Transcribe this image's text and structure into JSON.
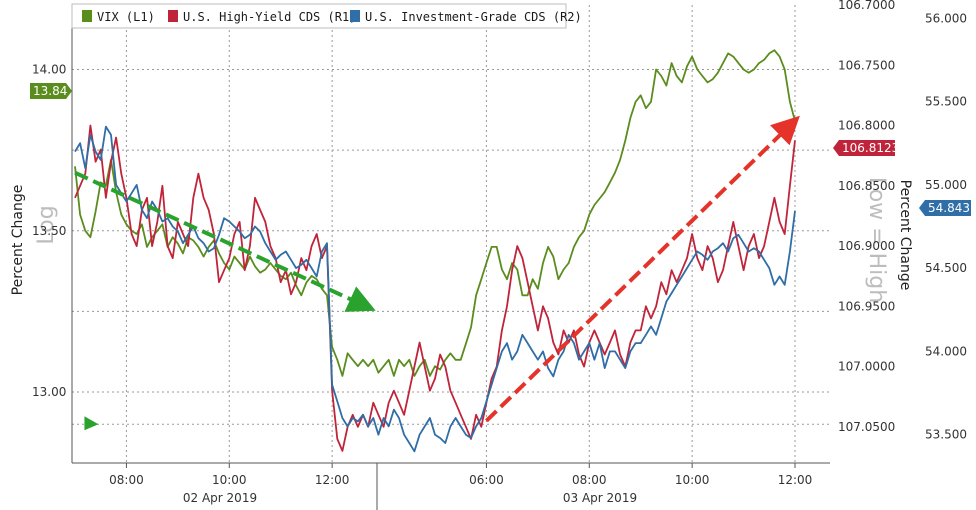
{
  "chart_data": {
    "type": "line",
    "title": "",
    "legend": {
      "placement": "top-left",
      "entries": [
        "VIX (L1)",
        "U.S. High-Yield CDS (R1)",
        "U.S. Investment-Grade CDS (R2)"
      ]
    },
    "axes": {
      "left": {
        "label": "Percent Change",
        "scale_note": "Log",
        "ticks": [
          "14.00",
          "13.50",
          "13.00"
        ],
        "range": [
          12.78,
          14.2
        ]
      },
      "right1": {
        "label": "Percent Change",
        "scale_note": "Low = High",
        "inverted": true,
        "ticks": [
          "106.7000",
          "106.7500",
          "106.8000",
          "106.8500",
          "106.9000",
          "106.9500",
          "107.0000",
          "107.0500"
        ],
        "range": [
          106.7,
          107.08
        ]
      },
      "right2": {
        "ticks": [
          "56.000",
          "55.500",
          "55.000",
          "54.500",
          "54.000",
          "53.500"
        ],
        "range": [
          53.33,
          56.08
        ]
      },
      "x": {
        "ticks": [
          "08:00",
          "10:00",
          "12:00",
          "06:00",
          "08:00",
          "10:00",
          "12:00"
        ],
        "date_labels": [
          "02 Apr 2019",
          "03 Apr 2019"
        ]
      }
    },
    "grid": true,
    "series": [
      {
        "name": "VIX (L1)",
        "axis": "left",
        "color": "#5b8c1e",
        "last_value_tag": "13.84",
        "t": [
          0,
          0.5,
          1,
          1.5,
          2,
          2.5,
          3,
          3.5,
          4,
          4.5,
          5,
          5.5,
          6,
          6.5,
          7,
          7.5,
          8,
          8.5,
          9,
          9.5,
          10,
          10.5,
          11,
          11.5,
          12,
          12.5,
          13,
          13.5,
          14,
          14.5,
          15,
          15.5,
          16,
          16.5,
          17,
          17.5,
          18,
          18.5,
          19,
          19.5,
          20,
          20.5,
          21,
          21.5,
          22,
          22.5,
          23,
          23.5,
          24,
          24.5,
          25,
          25.5,
          26,
          26.5,
          27,
          27.5,
          28,
          28.5,
          29,
          29.5,
          30,
          30.5,
          31,
          31.5,
          32,
          32.5,
          33,
          33.5,
          34,
          34.5,
          35,
          35.5,
          36,
          36.5,
          37,
          37.5,
          38,
          38.5,
          39,
          39.5,
          40,
          40.5,
          41,
          41.5,
          42,
          42.5,
          43,
          43.5,
          44,
          44.5,
          45,
          45.5,
          46,
          46.5,
          47,
          47.5,
          48,
          48.5,
          49,
          49.5,
          50,
          50.5,
          51,
          51.5,
          52,
          52.5,
          53,
          53.5,
          54,
          54.5,
          55,
          55.5,
          56,
          56.5,
          57,
          57.5,
          58,
          58.5,
          59,
          59.5,
          60,
          60.5,
          61,
          61.5,
          62,
          62.5,
          63,
          63.5,
          64,
          64.5,
          65,
          65.5,
          66,
          66.5,
          67,
          67.5,
          68,
          68.5,
          69,
          69.5,
          70
        ],
        "values": [
          13.7,
          13.55,
          13.5,
          13.48,
          13.56,
          13.65,
          13.64,
          13.72,
          13.62,
          13.55,
          13.52,
          13.5,
          13.49,
          13.52,
          13.45,
          13.48,
          13.5,
          13.52,
          13.45,
          13.48,
          13.46,
          13.43,
          13.48,
          13.47,
          13.45,
          13.42,
          13.45,
          13.47,
          13.43,
          13.4,
          13.38,
          13.42,
          13.4,
          13.38,
          13.42,
          13.39,
          13.37,
          13.38,
          13.4,
          13.38,
          13.36,
          13.35,
          13.37,
          13.33,
          13.3,
          13.34,
          13.36,
          13.35,
          13.32,
          13.3,
          13.14,
          13.1,
          13.05,
          13.12,
          13.1,
          13.08,
          13.1,
          13.08,
          13.1,
          13.06,
          13.08,
          13.1,
          13.05,
          13.1,
          13.08,
          13.1,
          13.05,
          13.08,
          13.1,
          13.05,
          13.08,
          13.07,
          13.1,
          13.12,
          13.1,
          13.1,
          13.15,
          13.2,
          13.3,
          13.35,
          13.4,
          13.45,
          13.45,
          13.38,
          13.35,
          13.4,
          13.38,
          13.3,
          13.3,
          13.35,
          13.32,
          13.4,
          13.45,
          13.42,
          13.35,
          13.38,
          13.4,
          13.45,
          13.48,
          13.5,
          13.55,
          13.58,
          13.6,
          13.62,
          13.65,
          13.68,
          13.72,
          13.78,
          13.85,
          13.9,
          13.92,
          13.88,
          13.9,
          14.0,
          13.98,
          13.95,
          14.02,
          13.98,
          13.96,
          14.01,
          14.04,
          14.0,
          13.98,
          13.96,
          13.97,
          13.99,
          14.02,
          14.05,
          14.04,
          14.02,
          14.0,
          13.99,
          14.0,
          14.02,
          14.03,
          14.05,
          14.06,
          14.04,
          14.0,
          13.9,
          13.84
        ]
      },
      {
        "name": "U.S. High-Yield CDS (R1)",
        "axis": "right1",
        "color": "#c0243a",
        "last_value_tag": "106.8123",
        "t": [
          0,
          0.5,
          1,
          1.5,
          2,
          2.5,
          3,
          3.5,
          4,
          4.5,
          5,
          5.5,
          6,
          6.5,
          7,
          7.5,
          8,
          8.5,
          9,
          9.5,
          10,
          10.5,
          11,
          11.5,
          12,
          12.5,
          13,
          13.5,
          14,
          14.5,
          15,
          15.5,
          16,
          16.5,
          17,
          17.5,
          18,
          18.5,
          19,
          19.5,
          20,
          20.5,
          21,
          21.5,
          22,
          22.5,
          23,
          23.5,
          24,
          24.5,
          25,
          25.5,
          26,
          26.5,
          27,
          27.5,
          28,
          28.5,
          29,
          29.5,
          30,
          30.5,
          31,
          31.5,
          32,
          32.5,
          33,
          33.5,
          34,
          34.5,
          35,
          35.5,
          36,
          36.5,
          37,
          37.5,
          38,
          38.5,
          39,
          39.5,
          40,
          40.5,
          41,
          41.5,
          42,
          42.5,
          43,
          43.5,
          44,
          44.5,
          45,
          45.5,
          46,
          46.5,
          47,
          47.5,
          48,
          48.5,
          49,
          49.5,
          50,
          50.5,
          51,
          51.5,
          52,
          52.5,
          53,
          53.5,
          54,
          54.5,
          55,
          55.5,
          56,
          56.5,
          57,
          57.5,
          58,
          58.5,
          59,
          59.5,
          60,
          60.5,
          61,
          61.5,
          62,
          62.5,
          63,
          63.5,
          64,
          64.5,
          65,
          65.5,
          66,
          66.5,
          67,
          67.5,
          68,
          68.5,
          69,
          69.5,
          70
        ],
        "values": [
          106.86,
          106.85,
          106.84,
          106.8,
          106.83,
          106.82,
          106.86,
          106.83,
          106.81,
          106.84,
          106.86,
          106.89,
          106.9,
          106.87,
          106.86,
          106.9,
          106.88,
          106.85,
          106.9,
          106.91,
          106.88,
          106.89,
          106.9,
          106.86,
          106.84,
          106.86,
          106.87,
          106.89,
          106.93,
          106.92,
          106.91,
          106.89,
          106.88,
          106.92,
          106.9,
          106.86,
          106.87,
          106.88,
          106.9,
          106.91,
          106.93,
          106.92,
          106.94,
          106.93,
          106.91,
          106.92,
          106.9,
          106.89,
          106.91,
          106.9,
          107.02,
          107.06,
          107.07,
          107.05,
          107.04,
          107.05,
          107.04,
          107.05,
          107.03,
          107.04,
          107.05,
          107.03,
          107.02,
          107.03,
          107.04,
          107.02,
          107.0,
          106.98,
          107.0,
          107.02,
          107.01,
          106.99,
          107.0,
          107.02,
          107.03,
          107.04,
          107.05,
          107.06,
          107.04,
          107.05,
          107.03,
          107.01,
          107.0,
          106.97,
          106.95,
          106.92,
          106.9,
          106.91,
          106.93,
          106.95,
          106.97,
          106.95,
          106.96,
          106.98,
          106.99,
          106.97,
          106.98,
          106.97,
          106.99,
          107.0,
          106.98,
          106.97,
          106.98,
          106.99,
          106.98,
          106.97,
          106.99,
          107.0,
          106.98,
          106.97,
          106.97,
          106.95,
          106.96,
          106.95,
          106.93,
          106.94,
          106.92,
          106.93,
          106.92,
          106.91,
          106.89,
          106.91,
          106.92,
          106.9,
          106.91,
          106.93,
          106.92,
          106.9,
          106.88,
          106.9,
          106.92,
          106.9,
          106.89,
          106.91,
          106.9,
          106.88,
          106.86,
          106.88,
          106.89,
          106.85,
          106.8123
        ]
      },
      {
        "name": "U.S. Investment-Grade CDS (R2)",
        "axis": "right2",
        "color": "#2f6ea6",
        "last_value_tag": "54.843",
        "t": [
          0,
          0.5,
          1,
          1.5,
          2,
          2.5,
          3,
          3.5,
          4,
          4.5,
          5,
          5.5,
          6,
          6.5,
          7,
          7.5,
          8,
          8.5,
          9,
          9.5,
          10,
          10.5,
          11,
          11.5,
          12,
          12.5,
          13,
          13.5,
          14,
          14.5,
          15,
          15.5,
          16,
          16.5,
          17,
          17.5,
          18,
          18.5,
          19,
          19.5,
          20,
          20.5,
          21,
          21.5,
          22,
          22.5,
          23,
          23.5,
          24,
          24.5,
          25,
          25.5,
          26,
          26.5,
          27,
          27.5,
          28,
          28.5,
          29,
          29.5,
          30,
          30.5,
          31,
          31.5,
          32,
          32.5,
          33,
          33.5,
          34,
          34.5,
          35,
          35.5,
          36,
          36.5,
          37,
          37.5,
          38,
          38.5,
          39,
          39.5,
          40,
          40.5,
          41,
          41.5,
          42,
          42.5,
          43,
          43.5,
          44,
          44.5,
          45,
          45.5,
          46,
          46.5,
          47,
          47.5,
          48,
          48.5,
          49,
          49.5,
          50,
          50.5,
          51,
          51.5,
          52,
          52.5,
          53,
          53.5,
          54,
          54.5,
          55,
          55.5,
          56,
          56.5,
          57,
          57.5,
          58,
          58.5,
          59,
          59.5,
          60,
          60.5,
          61,
          61.5,
          62,
          62.5,
          63,
          63.5,
          64,
          64.5,
          65,
          65.5,
          66,
          66.5,
          67,
          67.5,
          68,
          68.5,
          69,
          69.5,
          70
        ],
        "values": [
          55.2,
          55.25,
          55.1,
          55.3,
          55.2,
          55.15,
          55.35,
          55.3,
          55.0,
          54.95,
          54.9,
          54.95,
          55.0,
          54.85,
          54.8,
          54.9,
          54.85,
          54.78,
          54.8,
          54.75,
          54.72,
          54.65,
          54.7,
          54.75,
          54.68,
          54.65,
          54.6,
          54.62,
          54.7,
          54.8,
          54.78,
          54.75,
          54.72,
          54.68,
          54.7,
          54.75,
          54.72,
          54.65,
          54.6,
          54.55,
          54.58,
          54.6,
          54.55,
          54.5,
          54.52,
          54.55,
          54.5,
          54.45,
          54.6,
          54.65,
          53.8,
          53.7,
          53.6,
          53.55,
          53.6,
          53.58,
          53.62,
          53.55,
          53.6,
          53.5,
          53.6,
          53.55,
          53.65,
          53.6,
          53.5,
          53.45,
          53.4,
          53.5,
          53.55,
          53.6,
          53.5,
          53.48,
          53.45,
          53.55,
          53.6,
          53.55,
          53.5,
          53.48,
          53.55,
          53.6,
          53.7,
          53.8,
          53.9,
          54.0,
          54.05,
          53.95,
          54.0,
          54.1,
          54.05,
          54.0,
          53.95,
          54.0,
          53.9,
          53.85,
          53.95,
          54.0,
          54.1,
          54.05,
          53.95,
          54.0,
          54.05,
          53.95,
          54.05,
          53.9,
          54.0,
          54.0,
          53.95,
          53.9,
          54.0,
          54.05,
          54.05,
          54.1,
          54.15,
          54.1,
          54.2,
          54.3,
          54.35,
          54.4,
          54.45,
          54.5,
          54.55,
          54.6,
          54.58,
          54.55,
          54.6,
          54.62,
          54.65,
          54.6,
          54.68,
          54.7,
          54.65,
          54.6,
          54.62,
          54.6,
          54.55,
          54.5,
          54.4,
          54.45,
          54.4,
          54.6,
          54.843
        ]
      }
    ],
    "annotations": {
      "green_arrow": {
        "from": [
          0,
          13.68
        ],
        "to": [
          28,
          13.27
        ]
      },
      "red_arrow": {
        "from": [
          40,
          107.045
        ],
        "to": [
          69.5,
          106.8
        ]
      },
      "small_green_marker": {
        "t": 1.5,
        "value": 12.9
      }
    }
  }
}
